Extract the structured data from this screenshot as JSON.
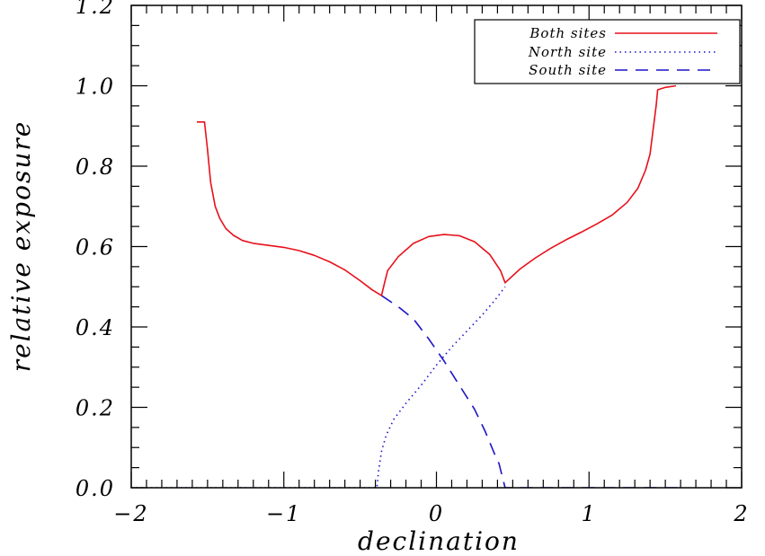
{
  "chart_data": {
    "type": "line",
    "title": "",
    "xlabel": "declination",
    "ylabel": "relative exposure",
    "xlim": [
      -2,
      2
    ],
    "ylim": [
      0,
      1.2
    ],
    "xticks": [
      -2,
      -1,
      0,
      1,
      2
    ],
    "xtick_labels": [
      "−2",
      "−1",
      "0",
      "1",
      "2"
    ],
    "yticks": [
      0,
      0.2,
      0.4,
      0.6,
      0.8,
      1.0,
      1.2
    ],
    "ytick_labels": [
      "0.0",
      "0.2",
      "0.4",
      "0.6",
      "0.8",
      "1.0",
      "1.2"
    ],
    "grid": false,
    "legend_position": "top-right",
    "series": [
      {
        "name": "Both sites",
        "color": "#e8101a",
        "style": "solid",
        "points": [
          [
            -1.57,
            0.91
          ],
          [
            -1.52,
            0.91
          ],
          [
            -1.5,
            0.84
          ],
          [
            -1.48,
            0.76
          ],
          [
            -1.45,
            0.7
          ],
          [
            -1.42,
            0.67
          ],
          [
            -1.38,
            0.645
          ],
          [
            -1.33,
            0.628
          ],
          [
            -1.27,
            0.615
          ],
          [
            -1.2,
            0.608
          ],
          [
            -1.1,
            0.603
          ],
          [
            -1.0,
            0.598
          ],
          [
            -0.9,
            0.59
          ],
          [
            -0.8,
            0.578
          ],
          [
            -0.7,
            0.562
          ],
          [
            -0.6,
            0.542
          ],
          [
            -0.5,
            0.515
          ],
          [
            -0.42,
            0.492
          ],
          [
            -0.36,
            0.478
          ],
          [
            -0.34,
            0.51
          ],
          [
            -0.32,
            0.54
          ],
          [
            -0.25,
            0.575
          ],
          [
            -0.15,
            0.608
          ],
          [
            -0.05,
            0.625
          ],
          [
            0.05,
            0.63
          ],
          [
            0.15,
            0.627
          ],
          [
            0.25,
            0.612
          ],
          [
            0.35,
            0.58
          ],
          [
            0.42,
            0.54
          ],
          [
            0.45,
            0.51
          ],
          [
            0.55,
            0.545
          ],
          [
            0.65,
            0.572
          ],
          [
            0.75,
            0.596
          ],
          [
            0.85,
            0.617
          ],
          [
            0.95,
            0.636
          ],
          [
            1.05,
            0.656
          ],
          [
            1.15,
            0.678
          ],
          [
            1.25,
            0.71
          ],
          [
            1.32,
            0.745
          ],
          [
            1.37,
            0.79
          ],
          [
            1.4,
            0.83
          ],
          [
            1.42,
            0.89
          ],
          [
            1.44,
            0.95
          ],
          [
            1.45,
            0.99
          ],
          [
            1.5,
            0.996
          ],
          [
            1.57,
            1.0
          ]
        ]
      },
      {
        "name": "North site",
        "color": "#1a14c8",
        "style": "dotted",
        "points": [
          [
            -2,
            0.0
          ],
          [
            -0.39,
            0.0
          ],
          [
            -0.38,
            0.04
          ],
          [
            -0.36,
            0.09
          ],
          [
            -0.33,
            0.13
          ],
          [
            -0.28,
            0.17
          ],
          [
            -0.2,
            0.21
          ],
          [
            -0.1,
            0.255
          ],
          [
            0.0,
            0.305
          ],
          [
            0.1,
            0.35
          ],
          [
            0.2,
            0.39
          ],
          [
            0.3,
            0.43
          ],
          [
            0.38,
            0.465
          ],
          [
            0.45,
            0.5
          ]
        ]
      },
      {
        "name": "South site",
        "color": "#1a14c8",
        "style": "dashed",
        "points": [
          [
            -0.36,
            0.478
          ],
          [
            -0.25,
            0.45
          ],
          [
            -0.15,
            0.42
          ],
          [
            -0.05,
            0.37
          ],
          [
            0.05,
            0.315
          ],
          [
            0.15,
            0.255
          ],
          [
            0.25,
            0.195
          ],
          [
            0.32,
            0.14
          ],
          [
            0.38,
            0.085
          ],
          [
            0.41,
            0.06
          ],
          [
            0.43,
            0.03
          ],
          [
            0.45,
            0.0
          ],
          [
            1.6,
            0.0
          ]
        ]
      }
    ]
  }
}
